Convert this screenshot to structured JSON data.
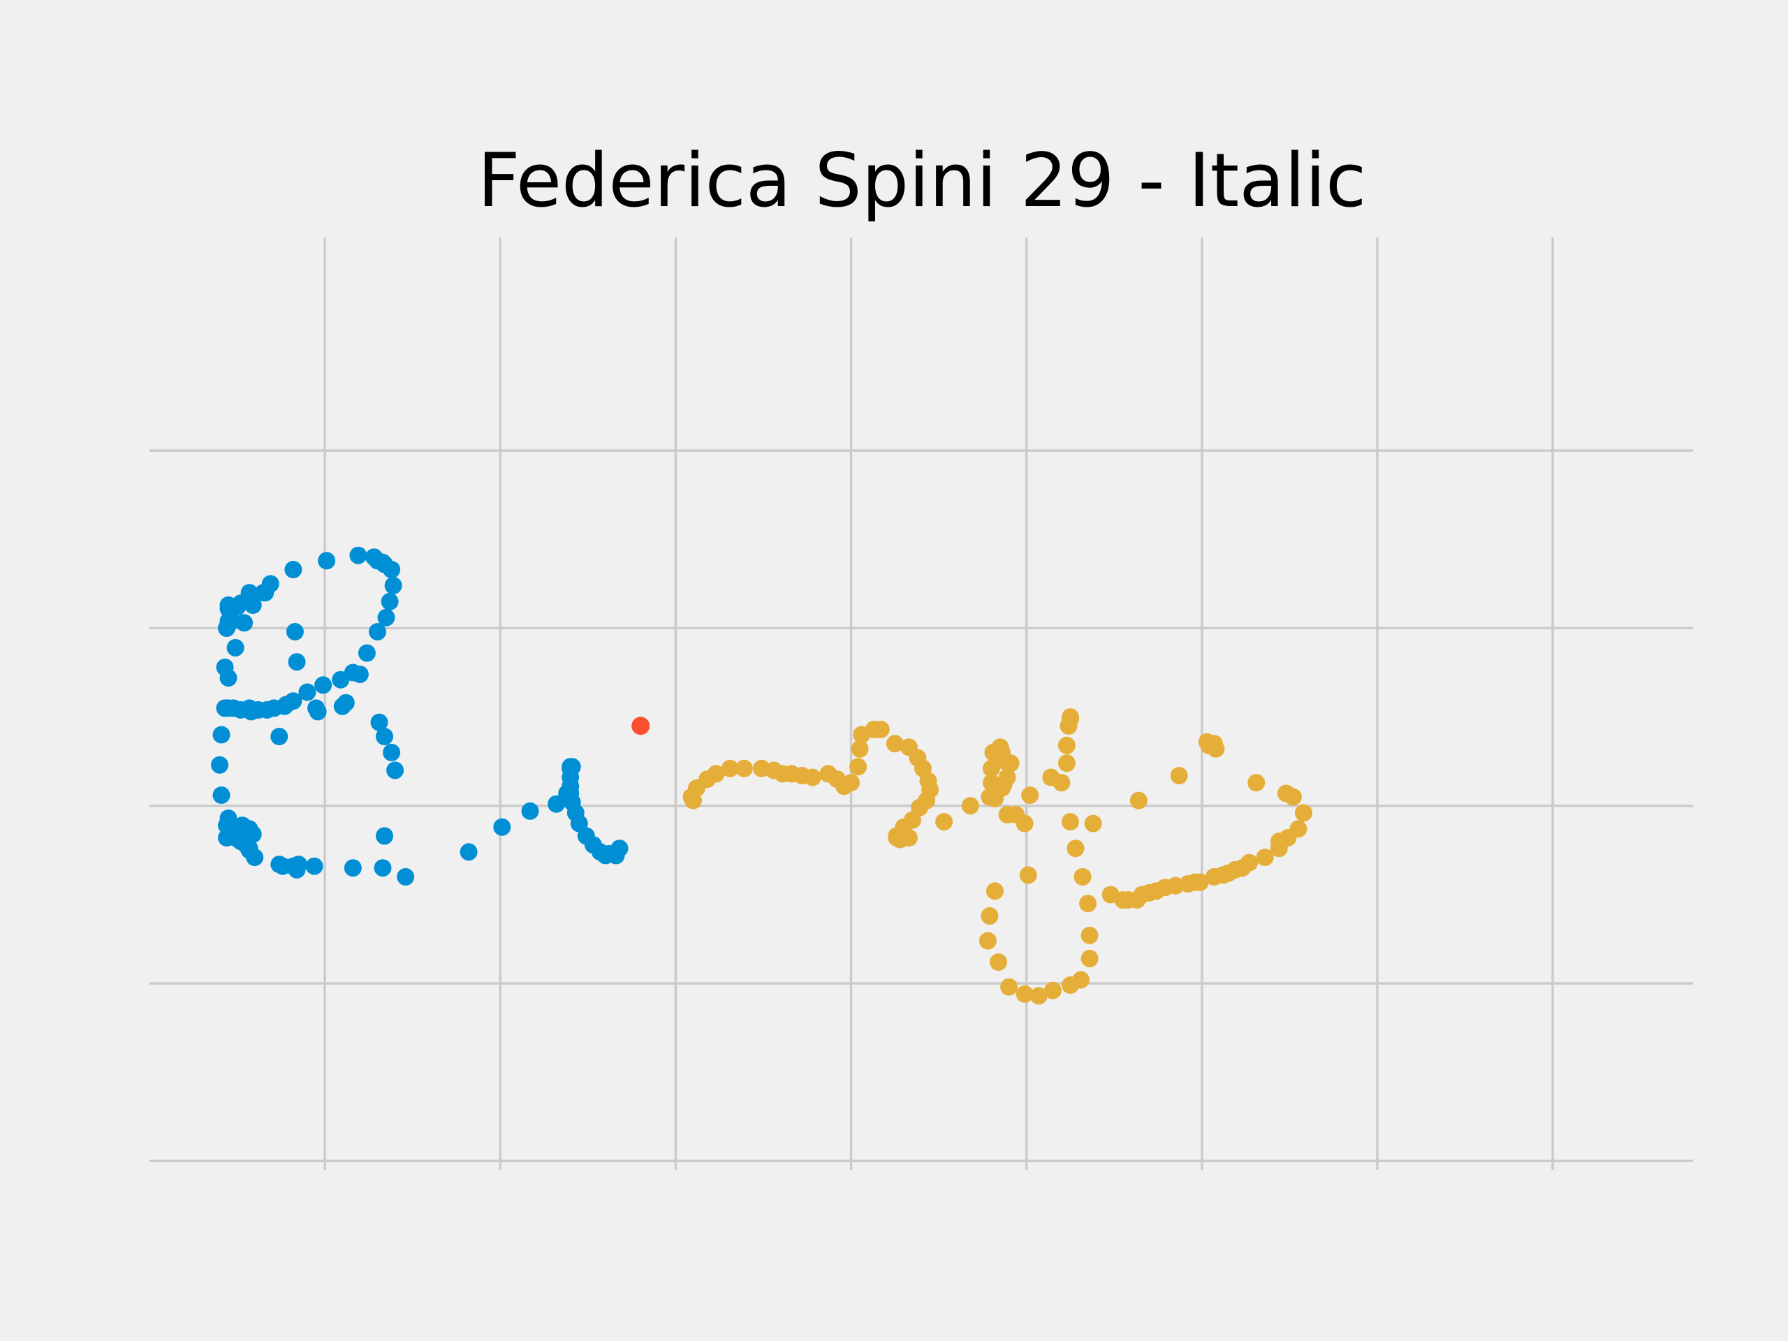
{
  "chart_data": {
    "type": "scatter",
    "title": "Federica Spini 29 - Italic",
    "xlabel": "",
    "ylabel": "",
    "xlim": [
      -1.0,
      7.8
    ],
    "ylim": [
      -2.05,
      3.2
    ],
    "xticks": [
      0,
      1,
      2,
      3,
      4,
      5,
      6,
      7
    ],
    "yticks": [
      -2,
      -1,
      0,
      1,
      2
    ],
    "grid": true,
    "colors": {
      "background": "#f0f0f0",
      "grid": "#cbcbcb",
      "stroke1": "#008fd5",
      "stroke2": "#e5ae38",
      "marker": "#fc4f30"
    },
    "series": [
      {
        "points": [
          [
            1.68,
            -0.24
          ],
          [
            1.66,
            -0.28
          ],
          [
            1.62,
            -0.27
          ],
          [
            1.6,
            -0.28
          ],
          [
            1.57,
            -0.26
          ],
          [
            1.53,
            -0.22
          ],
          [
            1.49,
            -0.17
          ],
          [
            1.45,
            -0.1
          ],
          [
            1.43,
            -0.04
          ],
          [
            1.41,
            0.02
          ],
          [
            1.4,
            0.07
          ],
          [
            1.4,
            0.11
          ],
          [
            1.4,
            0.16
          ],
          [
            1.4,
            0.21
          ],
          [
            1.4,
            0.22
          ],
          [
            1.41,
            0.22
          ],
          [
            1.38,
            0.07
          ],
          [
            1.32,
            0.01
          ],
          [
            1.17,
            -0.03
          ],
          [
            1.01,
            -0.12
          ],
          [
            0.82,
            -0.26
          ],
          [
            0.33,
            -0.35
          ],
          [
            0.34,
            -0.17
          ],
          [
            0.46,
            -0.4
          ],
          [
            0.16,
            -0.35
          ],
          [
            -0.15,
            -0.33
          ],
          [
            -0.06,
            -0.34
          ],
          [
            -0.16,
            -0.36
          ],
          [
            -0.18,
            -0.34
          ],
          [
            -0.24,
            -0.34
          ],
          [
            -0.26,
            -0.33
          ],
          [
            -0.4,
            -0.29
          ],
          [
            -0.43,
            -0.25
          ],
          [
            -0.43,
            -0.24
          ],
          [
            -0.45,
            -0.22
          ],
          [
            -0.46,
            -0.18
          ],
          [
            -0.45,
            -0.15
          ],
          [
            -0.43,
            -0.13
          ],
          [
            -0.41,
            -0.16
          ],
          [
            -0.47,
            -0.11
          ],
          [
            -0.55,
            -0.07
          ],
          [
            -0.51,
            -0.18
          ],
          [
            -0.52,
            -0.12
          ],
          [
            -0.5,
            -0.12
          ],
          [
            -0.48,
            -0.2
          ],
          [
            -0.53,
            -0.14
          ],
          [
            -0.56,
            -0.18
          ],
          [
            -0.56,
            -0.11
          ],
          [
            -0.59,
            0.06
          ],
          [
            -0.6,
            0.23
          ],
          [
            -0.59,
            0.4
          ],
          [
            -0.57,
            0.55
          ],
          [
            -0.55,
            0.72
          ],
          [
            -0.51,
            0.89
          ],
          [
            -0.46,
            1.03
          ],
          [
            -0.41,
            1.13
          ],
          [
            -0.31,
            1.25
          ],
          [
            -0.18,
            1.33
          ],
          [
            0.01,
            1.38
          ],
          [
            0.19,
            1.41
          ],
          [
            0.28,
            1.4
          ],
          [
            0.3,
            1.38
          ],
          [
            0.33,
            1.37
          ],
          [
            0.34,
            1.36
          ],
          [
            0.38,
            1.33
          ],
          [
            0.39,
            1.24
          ],
          [
            0.37,
            1.15
          ],
          [
            0.35,
            1.06
          ],
          [
            0.3,
            0.98
          ],
          [
            0.24,
            0.86
          ],
          [
            0.16,
            0.75
          ],
          [
            0.09,
            0.71
          ],
          [
            -0.01,
            0.68
          ],
          [
            -0.1,
            0.64
          ],
          [
            -0.18,
            0.59
          ],
          [
            -0.23,
            0.56
          ],
          [
            -0.29,
            0.55
          ],
          [
            -0.33,
            0.54
          ],
          [
            -0.38,
            0.54
          ],
          [
            -0.42,
            0.53
          ],
          [
            -0.43,
            0.55
          ],
          [
            -0.48,
            0.54
          ],
          [
            -0.52,
            0.55
          ],
          [
            -0.55,
            0.55
          ],
          [
            -0.57,
            0.78
          ],
          [
            -0.56,
            1.0
          ],
          [
            -0.55,
            1.04
          ],
          [
            -0.55,
            1.11
          ],
          [
            -0.55,
            1.13
          ],
          [
            -0.53,
            1.04
          ],
          [
            -0.5,
            1.12
          ],
          [
            -0.48,
            1.14
          ],
          [
            -0.43,
            1.2
          ],
          [
            -0.34,
            1.2
          ],
          [
            -0.35,
            1.2
          ],
          [
            -0.17,
            0.98
          ],
          [
            -0.16,
            0.81
          ],
          [
            -0.05,
            0.55
          ],
          [
            -0.04,
            0.53
          ],
          [
            -0.26,
            0.39
          ],
          [
            -0.22,
            0.57
          ],
          [
            0.31,
            0.47
          ],
          [
            0.34,
            0.39
          ],
          [
            0.38,
            0.3
          ],
          [
            0.4,
            0.2
          ],
          [
            0.1,
            0.56
          ],
          [
            0.12,
            0.58
          ],
          [
            0.2,
            0.74
          ]
        ]
      },
      {
        "points": [
          [
            2.1,
            0.03
          ],
          [
            2.09,
            0.05
          ],
          [
            2.12,
            0.1
          ],
          [
            2.18,
            0.15
          ],
          [
            2.23,
            0.18
          ],
          [
            2.31,
            0.21
          ],
          [
            2.39,
            0.21
          ],
          [
            2.49,
            0.21
          ],
          [
            2.56,
            0.2
          ],
          [
            2.61,
            0.18
          ],
          [
            2.66,
            0.18
          ],
          [
            2.72,
            0.17
          ],
          [
            2.78,
            0.16
          ],
          [
            2.87,
            0.18
          ],
          [
            2.92,
            0.15
          ],
          [
            2.96,
            0.11
          ],
          [
            3.0,
            0.13
          ],
          [
            3.04,
            0.22
          ],
          [
            3.05,
            0.32
          ],
          [
            3.06,
            0.4
          ],
          [
            3.13,
            0.43
          ],
          [
            3.17,
            0.43
          ],
          [
            3.25,
            0.35
          ],
          [
            3.33,
            0.33
          ],
          [
            3.38,
            0.27
          ],
          [
            3.41,
            0.21
          ],
          [
            3.44,
            0.14
          ],
          [
            3.45,
            0.09
          ],
          [
            3.43,
            0.03
          ],
          [
            3.39,
            -0.01
          ],
          [
            3.35,
            -0.08
          ],
          [
            3.3,
            -0.12
          ],
          [
            3.26,
            -0.17
          ],
          [
            3.26,
            -0.18
          ],
          [
            3.28,
            -0.19
          ],
          [
            3.33,
            -0.18
          ],
          [
            3.53,
            -0.09
          ],
          [
            3.68,
            -0.0
          ],
          [
            3.79,
            0.05
          ],
          [
            3.86,
            0.1
          ],
          [
            3.82,
            0.04
          ],
          [
            3.8,
            0.13
          ],
          [
            3.8,
            0.21
          ],
          [
            3.81,
            0.3
          ],
          [
            3.82,
            0.3
          ],
          [
            3.85,
            0.33
          ],
          [
            3.86,
            0.3
          ],
          [
            3.88,
            0.25
          ],
          [
            3.91,
            0.24
          ],
          [
            3.89,
            0.16
          ],
          [
            3.87,
            0.12
          ],
          [
            3.82,
            0.06
          ],
          [
            3.89,
            -0.05
          ],
          [
            3.99,
            -0.1
          ],
          [
            3.94,
            -0.05
          ],
          [
            4.02,
            0.06
          ],
          [
            4.14,
            0.16
          ],
          [
            4.23,
            0.24
          ],
          [
            4.23,
            0.34
          ],
          [
            4.24,
            0.45
          ],
          [
            4.25,
            0.5
          ],
          [
            4.25,
            0.49
          ],
          [
            4.2,
            0.13
          ],
          [
            4.25,
            -0.09
          ],
          [
            4.28,
            -0.24
          ],
          [
            4.32,
            -0.4
          ],
          [
            4.35,
            -0.55
          ],
          [
            4.36,
            -0.73
          ],
          [
            4.36,
            -0.86
          ],
          [
            4.31,
            -0.98
          ],
          [
            4.25,
            -1.01
          ],
          [
            4.15,
            -1.04
          ],
          [
            4.07,
            -1.07
          ],
          [
            3.99,
            -1.06
          ],
          [
            3.9,
            -1.02
          ],
          [
            3.84,
            -0.88
          ],
          [
            3.78,
            -0.76
          ],
          [
            3.79,
            -0.62
          ],
          [
            3.82,
            -0.48
          ],
          [
            4.01,
            -0.39
          ],
          [
            4.38,
            -0.1
          ],
          [
            4.64,
            0.03
          ],
          [
            4.87,
            0.17
          ],
          [
            5.08,
            0.32
          ],
          [
            5.04,
            0.34
          ],
          [
            5.03,
            0.36
          ],
          [
            5.07,
            0.35
          ],
          [
            5.31,
            0.13
          ],
          [
            5.48,
            0.07
          ],
          [
            5.52,
            0.05
          ],
          [
            5.58,
            -0.04
          ],
          [
            5.55,
            -0.13
          ],
          [
            5.49,
            -0.18
          ],
          [
            5.44,
            -0.2
          ],
          [
            5.44,
            -0.24
          ],
          [
            5.36,
            -0.29
          ],
          [
            5.27,
            -0.32
          ],
          [
            5.23,
            -0.35
          ],
          [
            5.19,
            -0.36
          ],
          [
            5.15,
            -0.38
          ],
          [
            5.12,
            -0.39
          ],
          [
            5.07,
            -0.4
          ],
          [
            4.99,
            -0.43
          ],
          [
            4.96,
            -0.43
          ],
          [
            4.92,
            -0.44
          ],
          [
            4.85,
            -0.45
          ],
          [
            4.79,
            -0.46
          ],
          [
            4.74,
            -0.48
          ],
          [
            4.7,
            -0.49
          ],
          [
            4.66,
            -0.5
          ],
          [
            4.63,
            -0.53
          ],
          [
            4.58,
            -0.53
          ],
          [
            4.55,
            -0.53
          ],
          [
            4.48,
            -0.5
          ]
        ]
      }
    ],
    "marker_point": [
      1.8,
      0.45
    ]
  }
}
